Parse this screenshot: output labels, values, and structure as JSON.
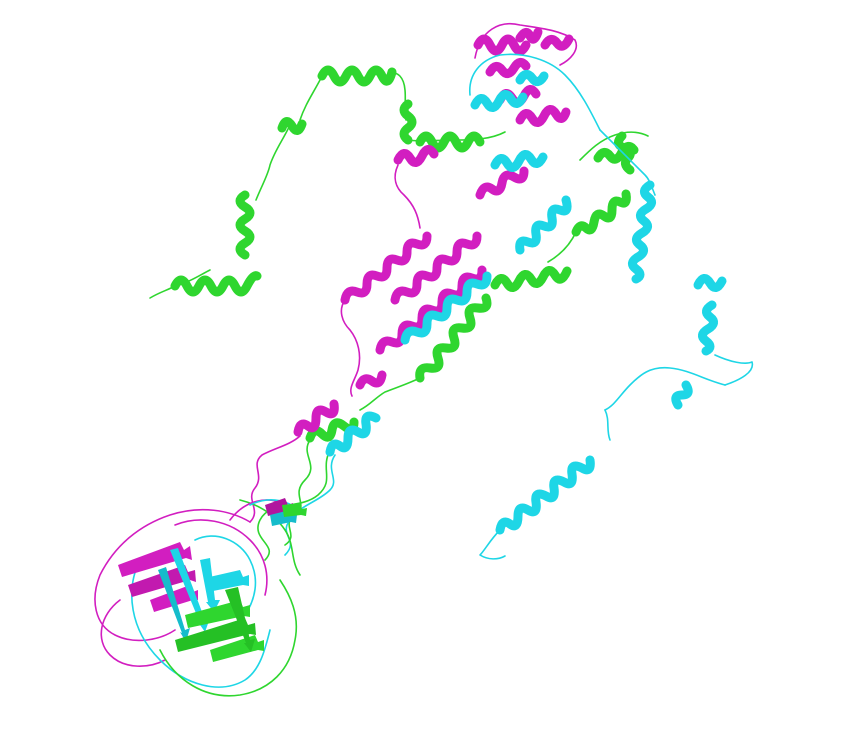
{
  "image": {
    "subject": "",
    "background": "#ffffff"
  },
  "chains": [
    {
      "id": "chain-a",
      "color": "#2fd62f",
      "shade": "#1fa81f",
      "color_name": "green"
    },
    {
      "id": "chain-b",
      "color": "#d21ec0",
      "shade": "#9e1190",
      "color_name": "magenta"
    },
    {
      "id": "chain-c",
      "color": "#1ed6e6",
      "shade": "#12a7b4",
      "color_name": "cyan"
    }
  ]
}
